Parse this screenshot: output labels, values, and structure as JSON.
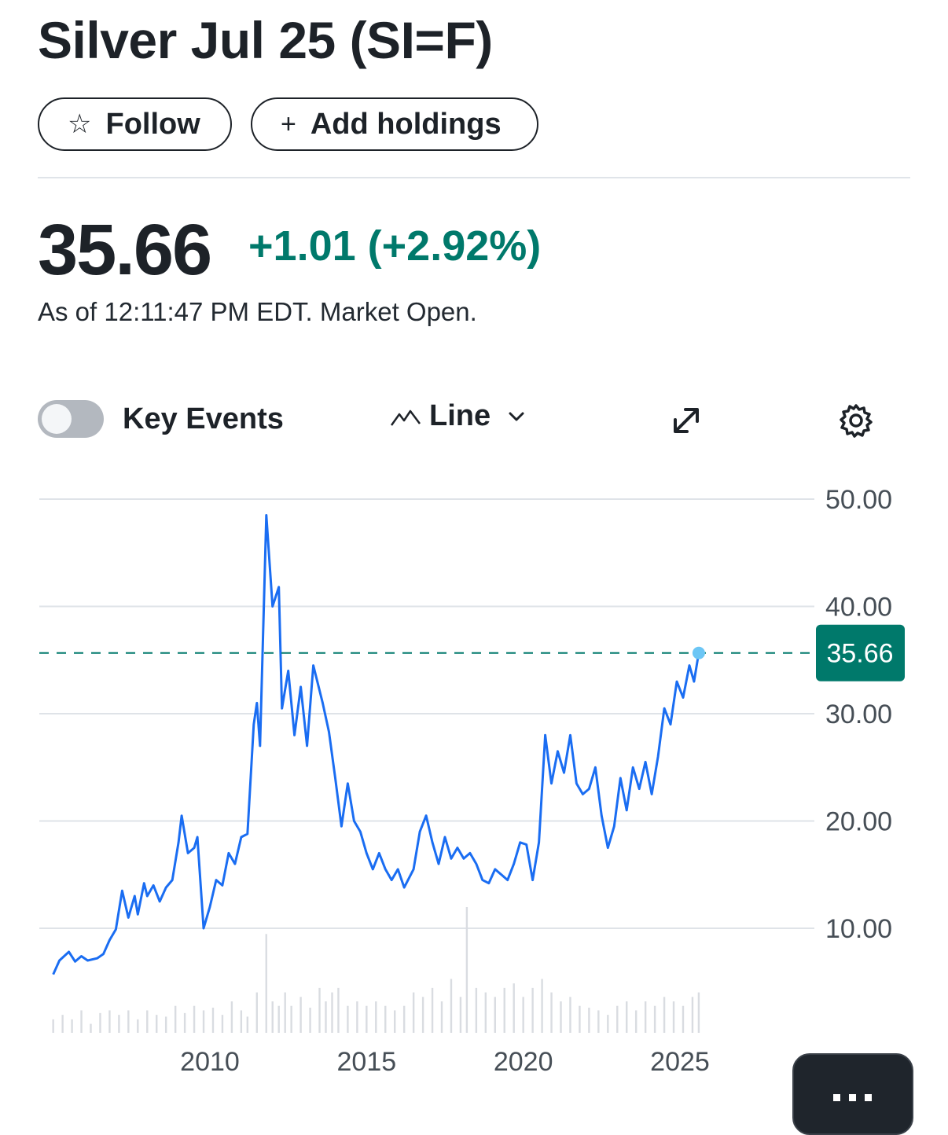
{
  "header": {
    "title": "Silver Jul 25 (SI=F)",
    "follow_label": "Follow",
    "add_holdings_label": "Add holdings",
    "follow_icon": "star-icon",
    "add_icon": "plus-icon"
  },
  "quote": {
    "price": "35.66",
    "change": "+1.01 (+2.92%)",
    "as_of": "As of 12:11:47 PM EDT. Market Open."
  },
  "controls": {
    "key_events_label": "Key Events",
    "key_events_on": false,
    "chart_type_label": "Line"
  },
  "colors": {
    "line": "#1a6df2",
    "positive": "#00796b",
    "last_marker": "#6cc6f5",
    "grid": "#dfe3e8",
    "volume": "#d9dce1"
  },
  "chart_data": {
    "type": "line",
    "series": [
      {
        "values": [
          [
            2005.0,
            5.7
          ],
          [
            2005.2,
            7.0
          ],
          [
            2005.5,
            7.8
          ],
          [
            2005.7,
            6.9
          ],
          [
            2005.9,
            7.4
          ],
          [
            2006.1,
            7.0
          ],
          [
            2006.4,
            7.2
          ],
          [
            2006.6,
            7.6
          ],
          [
            2006.8,
            8.9
          ],
          [
            2007.0,
            9.9
          ],
          [
            2007.2,
            13.5
          ],
          [
            2007.4,
            11.0
          ],
          [
            2007.6,
            13.0
          ],
          [
            2007.7,
            11.3
          ],
          [
            2007.9,
            14.2
          ],
          [
            2008.0,
            13.0
          ],
          [
            2008.2,
            14.0
          ],
          [
            2008.4,
            12.5
          ],
          [
            2008.6,
            13.8
          ],
          [
            2008.8,
            14.5
          ],
          [
            2009.0,
            18.0
          ],
          [
            2009.1,
            20.5
          ],
          [
            2009.3,
            17.0
          ],
          [
            2009.5,
            17.5
          ],
          [
            2009.6,
            18.5
          ],
          [
            2009.8,
            10.0
          ],
          [
            2010.0,
            12.0
          ],
          [
            2010.2,
            14.5
          ],
          [
            2010.4,
            14.0
          ],
          [
            2010.6,
            17.0
          ],
          [
            2010.8,
            16.0
          ],
          [
            2011.0,
            18.5
          ],
          [
            2011.2,
            18.8
          ],
          [
            2011.4,
            29.0
          ],
          [
            2011.5,
            31.0
          ],
          [
            2011.6,
            27.0
          ],
          [
            2011.8,
            48.5
          ],
          [
            2012.0,
            40.0
          ],
          [
            2012.2,
            41.8
          ],
          [
            2012.3,
            30.5
          ],
          [
            2012.5,
            34.0
          ],
          [
            2012.7,
            28.0
          ],
          [
            2012.9,
            32.5
          ],
          [
            2013.1,
            27.0
          ],
          [
            2013.3,
            34.5
          ],
          [
            2013.6,
            31.0
          ],
          [
            2013.8,
            28.3
          ],
          [
            2014.0,
            24.0
          ],
          [
            2014.2,
            19.5
          ],
          [
            2014.4,
            23.5
          ],
          [
            2014.6,
            20.0
          ],
          [
            2014.8,
            19.0
          ],
          [
            2015.0,
            17.0
          ],
          [
            2015.2,
            15.5
          ],
          [
            2015.4,
            17.0
          ],
          [
            2015.6,
            15.5
          ],
          [
            2015.8,
            14.5
          ],
          [
            2016.0,
            15.5
          ],
          [
            2016.2,
            13.8
          ],
          [
            2016.5,
            15.5
          ],
          [
            2016.7,
            19.0
          ],
          [
            2016.9,
            20.5
          ],
          [
            2017.1,
            18.0
          ],
          [
            2017.3,
            16.0
          ],
          [
            2017.5,
            18.5
          ],
          [
            2017.7,
            16.5
          ],
          [
            2017.9,
            17.5
          ],
          [
            2018.1,
            16.5
          ],
          [
            2018.3,
            17.0
          ],
          [
            2018.5,
            16.0
          ],
          [
            2018.7,
            14.5
          ],
          [
            2018.9,
            14.2
          ],
          [
            2019.1,
            15.5
          ],
          [
            2019.3,
            15.0
          ],
          [
            2019.5,
            14.5
          ],
          [
            2019.7,
            16.0
          ],
          [
            2019.9,
            18.0
          ],
          [
            2020.1,
            17.8
          ],
          [
            2020.3,
            14.5
          ],
          [
            2020.5,
            18.0
          ],
          [
            2020.7,
            28.0
          ],
          [
            2020.9,
            23.5
          ],
          [
            2021.1,
            26.5
          ],
          [
            2021.3,
            24.5
          ],
          [
            2021.5,
            28.0
          ],
          [
            2021.7,
            23.5
          ],
          [
            2021.9,
            22.5
          ],
          [
            2022.1,
            23.0
          ],
          [
            2022.3,
            25.0
          ],
          [
            2022.5,
            20.5
          ],
          [
            2022.7,
            17.5
          ],
          [
            2022.9,
            19.5
          ],
          [
            2023.1,
            24.0
          ],
          [
            2023.3,
            21.0
          ],
          [
            2023.5,
            25.0
          ],
          [
            2023.7,
            23.0
          ],
          [
            2023.9,
            25.5
          ],
          [
            2024.1,
            22.5
          ],
          [
            2024.3,
            26.0
          ],
          [
            2024.5,
            30.5
          ],
          [
            2024.7,
            29.0
          ],
          [
            2024.9,
            33.0
          ],
          [
            2025.1,
            31.5
          ],
          [
            2025.3,
            34.5
          ],
          [
            2025.45,
            33.0
          ],
          [
            2025.6,
            35.66
          ]
        ]
      }
    ],
    "volume": [
      [
        2005.0,
        1.5
      ],
      [
        2005.3,
        2.0
      ],
      [
        2005.6,
        1.5
      ],
      [
        2005.9,
        2.5
      ],
      [
        2006.2,
        1.0
      ],
      [
        2006.5,
        2.2
      ],
      [
        2006.8,
        2.5
      ],
      [
        2007.1,
        2.0
      ],
      [
        2007.4,
        2.5
      ],
      [
        2007.7,
        1.5
      ],
      [
        2008.0,
        2.5
      ],
      [
        2008.3,
        2.0
      ],
      [
        2008.6,
        1.8
      ],
      [
        2008.9,
        3.0
      ],
      [
        2009.2,
        2.2
      ],
      [
        2009.5,
        3.0
      ],
      [
        2009.8,
        2.5
      ],
      [
        2010.1,
        2.8
      ],
      [
        2010.4,
        2.0
      ],
      [
        2010.7,
        3.5
      ],
      [
        2011.0,
        2.5
      ],
      [
        2011.2,
        1.8
      ],
      [
        2011.5,
        4.5
      ],
      [
        2011.8,
        11.0
      ],
      [
        2012.0,
        3.5
      ],
      [
        2012.2,
        3.0
      ],
      [
        2012.4,
        4.5
      ],
      [
        2012.6,
        3.0
      ],
      [
        2012.9,
        4.0
      ],
      [
        2013.2,
        2.8
      ],
      [
        2013.5,
        5.0
      ],
      [
        2013.7,
        3.5
      ],
      [
        2013.9,
        4.5
      ],
      [
        2014.1,
        5.0
      ],
      [
        2014.4,
        3.0
      ],
      [
        2014.7,
        3.5
      ],
      [
        2015.0,
        3.0
      ],
      [
        2015.3,
        3.5
      ],
      [
        2015.6,
        3.0
      ],
      [
        2015.9,
        2.5
      ],
      [
        2016.2,
        3.0
      ],
      [
        2016.5,
        4.5
      ],
      [
        2016.8,
        4.0
      ],
      [
        2017.1,
        5.0
      ],
      [
        2017.4,
        3.5
      ],
      [
        2017.7,
        6.0
      ],
      [
        2018.0,
        4.0
      ],
      [
        2018.2,
        14.0
      ],
      [
        2018.5,
        5.0
      ],
      [
        2018.8,
        4.5
      ],
      [
        2019.1,
        4.0
      ],
      [
        2019.4,
        5.0
      ],
      [
        2019.7,
        5.5
      ],
      [
        2020.0,
        4.0
      ],
      [
        2020.3,
        5.0
      ],
      [
        2020.6,
        6.0
      ],
      [
        2020.9,
        4.5
      ],
      [
        2021.2,
        3.5
      ],
      [
        2021.5,
        4.0
      ],
      [
        2021.8,
        3.0
      ],
      [
        2022.1,
        2.8
      ],
      [
        2022.4,
        2.5
      ],
      [
        2022.7,
        2.0
      ],
      [
        2023.0,
        3.0
      ],
      [
        2023.3,
        3.5
      ],
      [
        2023.6,
        2.5
      ],
      [
        2023.9,
        3.5
      ],
      [
        2024.2,
        3.0
      ],
      [
        2024.5,
        4.0
      ],
      [
        2024.8,
        3.5
      ],
      [
        2025.1,
        3.0
      ],
      [
        2025.4,
        4.0
      ],
      [
        2025.6,
        4.5
      ]
    ],
    "x_ticks": [
      "2010",
      "2015",
      "2020",
      "2025"
    ],
    "y_ticks": [
      "50.00",
      "40.00",
      "30.00",
      "20.00",
      "10.00"
    ],
    "xlim": [
      2005.0,
      2027.0
    ],
    "ylim": [
      5.0,
      50.0
    ],
    "last_value_label": "35.66",
    "last_value_line": "dashed",
    "grid": true
  }
}
